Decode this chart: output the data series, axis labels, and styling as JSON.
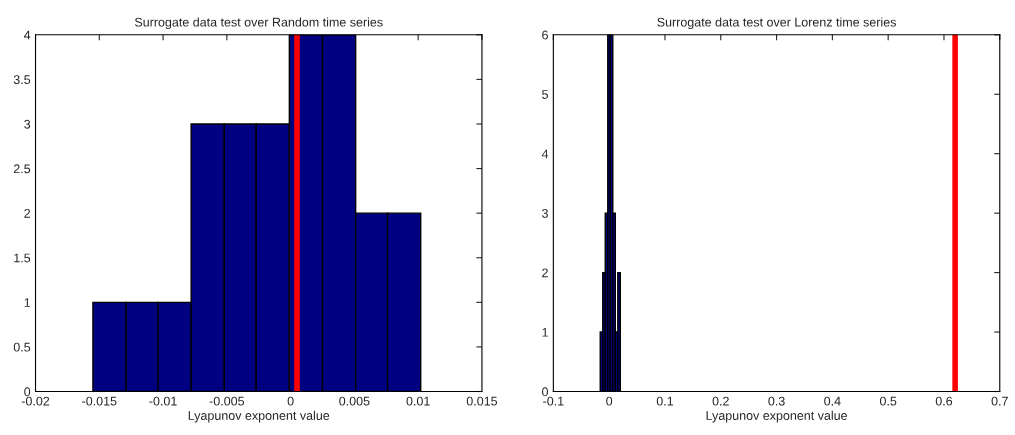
{
  "chart_data": [
    {
      "type": "histogram",
      "title": "Surrogate data test over Random time series",
      "xlabel": "Lyapunov exponent value",
      "bins": [
        -0.0155,
        -0.0129,
        -0.0104,
        -0.0078,
        -0.0052,
        -0.0027,
        -0.0001,
        0.0025,
        0.0051,
        0.0076,
        0.0102
      ],
      "values": [
        1,
        1,
        1,
        3,
        3,
        3,
        4,
        4,
        2,
        2
      ],
      "color": "#000080",
      "xlim": [
        -0.02,
        0.015
      ],
      "xticks": [
        -0.02,
        -0.015,
        -0.01,
        -0.005,
        0,
        0.005,
        0.01,
        0.015
      ],
      "ylim": [
        0,
        4
      ],
      "yticks": [
        0,
        0.5,
        1,
        1.5,
        2,
        2.5,
        3,
        3.5,
        4
      ],
      "ref_lines": [
        {
          "axis": "x",
          "value": 0.0005,
          "color": "#ff0000"
        }
      ]
    },
    {
      "type": "histogram",
      "title": "Surrogate data test over Lorenz time series",
      "xlabel": "Lyapunov exponent value",
      "bins": [
        -0.016,
        -0.0115,
        -0.007,
        -0.0025,
        0.002,
        0.0065,
        0.011,
        0.0155,
        0.02
      ],
      "values": [
        1,
        2,
        3,
        6,
        6,
        3,
        1,
        2
      ],
      "color": "#000080",
      "xlim": [
        -0.1,
        0.7
      ],
      "xticks": [
        -0.1,
        0,
        0.1,
        0.2,
        0.3,
        0.4,
        0.5,
        0.6,
        0.7
      ],
      "ylim": [
        0,
        6
      ],
      "yticks": [
        0,
        1,
        2,
        3,
        4,
        5,
        6
      ],
      "ref_lines": [
        {
          "axis": "x",
          "value": 0.62,
          "color": "#ff0000"
        }
      ]
    }
  ]
}
